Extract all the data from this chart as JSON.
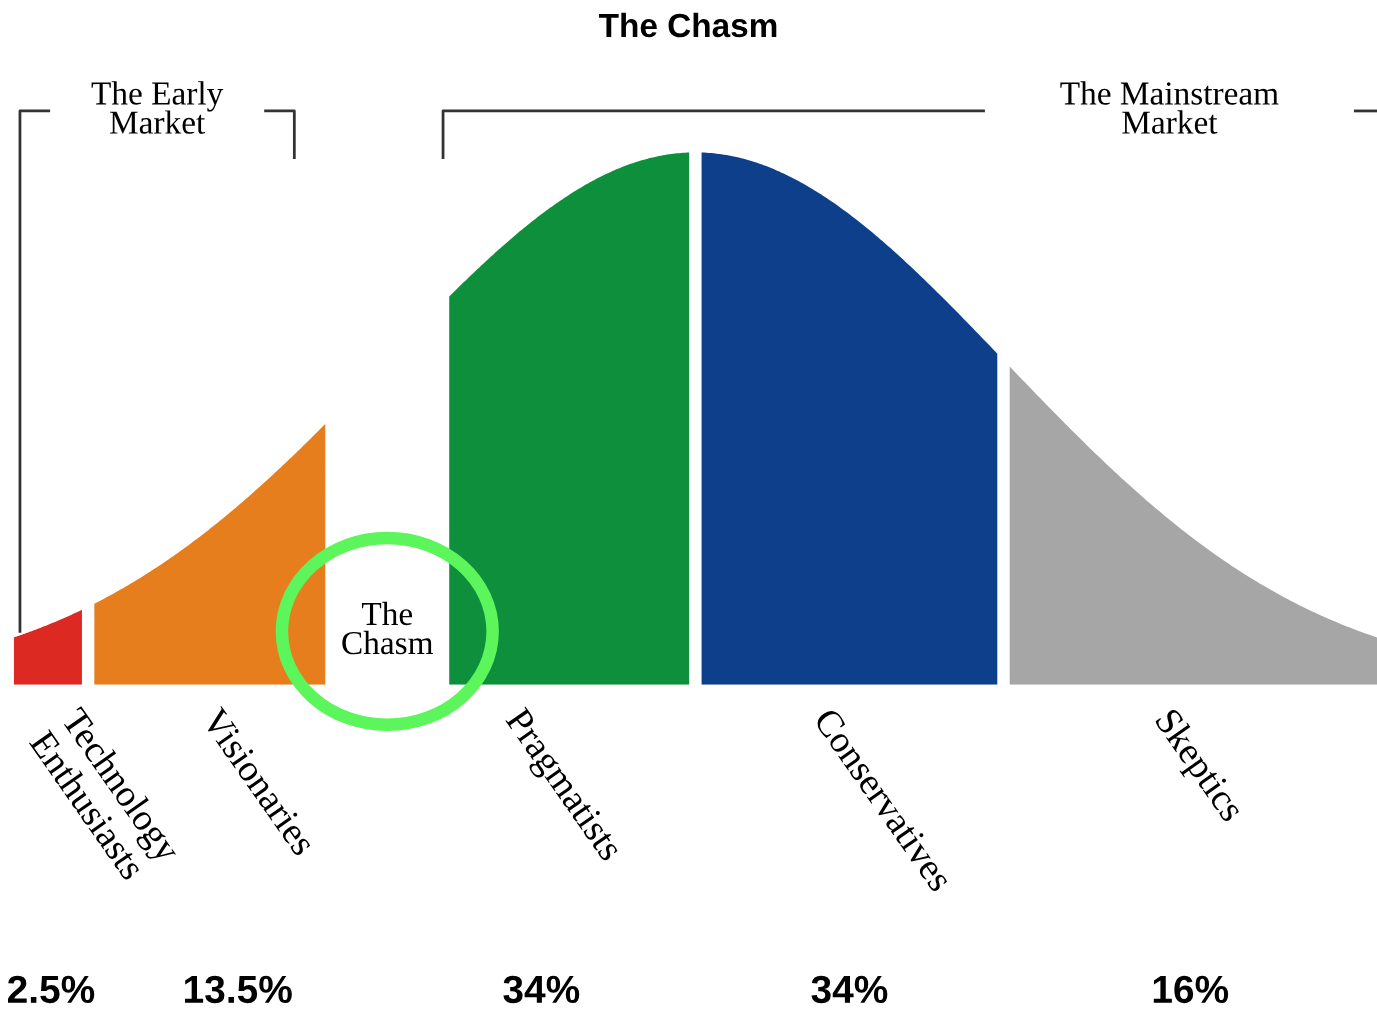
{
  "chart_data": {
    "type": "other",
    "title": "The Chasm",
    "categories": [
      "Technology\nEnthusiasts",
      "Visionaries",
      "Pragmatists",
      "Conservatives",
      "Skeptics"
    ],
    "values": [
      2.5,
      13.5,
      34,
      34,
      16
    ],
    "value_labels": [
      "2.5%",
      "13.5%",
      "34%",
      "34%",
      "16%"
    ],
    "colors": [
      "#dc2a23",
      "#e67e1e",
      "#0d8f3c",
      "#0d3f8a",
      "#a6a6a6"
    ],
    "annotations": [
      "The Early\nMarket",
      "The Mainstream\nMarket",
      "The\nChasm"
    ]
  }
}
